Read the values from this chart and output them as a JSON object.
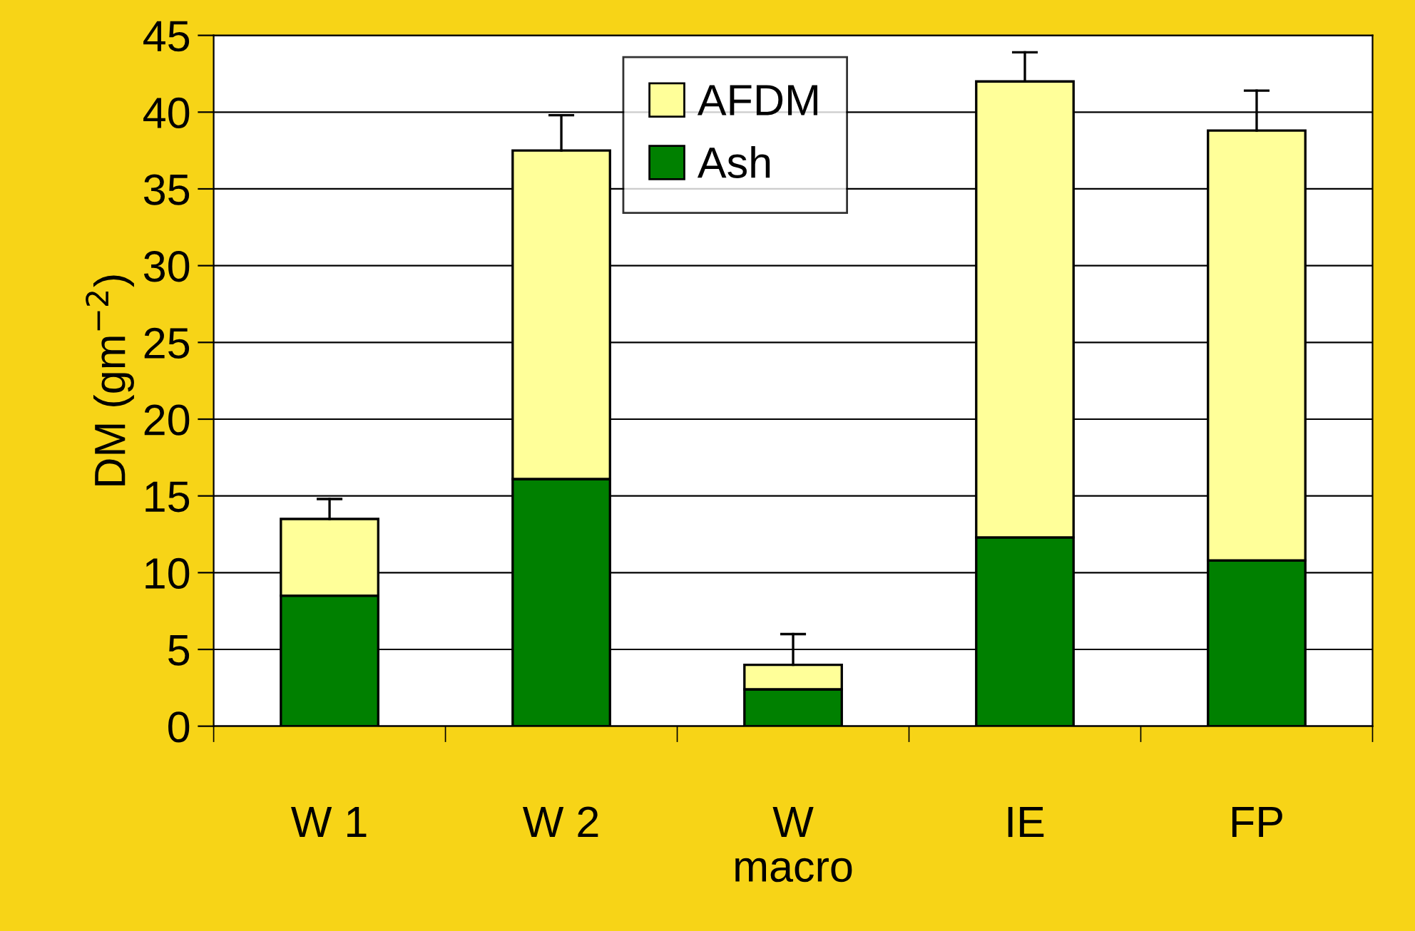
{
  "chart_data": {
    "type": "bar",
    "stacked": true,
    "xlabel": "macro",
    "ylabel": "DM (gm$^{−2}$)",
    "categories": [
      "W 1",
      "W 2",
      "W",
      "IE",
      "FP"
    ],
    "series": [
      {
        "name": "Ash",
        "color": "#008000",
        "values": [
          8.5,
          16.1,
          2.4,
          12.3,
          10.8
        ]
      },
      {
        "name": "AFDM",
        "color": "#ffff99",
        "values": [
          5.0,
          21.4,
          1.6,
          29.7,
          28.0
        ],
        "errors": [
          [
            13.5,
            14.8
          ],
          [
            37.5,
            39.8
          ],
          [
            4.0,
            6.0
          ],
          [
            42.0,
            43.9
          ],
          [
            38.8,
            41.4
          ]
        ]
      }
    ],
    "ylim": [
      0,
      45
    ],
    "yticks": [
      0,
      5,
      10,
      15,
      20,
      25,
      30,
      35,
      40,
      45
    ],
    "grid": "y",
    "legend": "top center"
  }
}
